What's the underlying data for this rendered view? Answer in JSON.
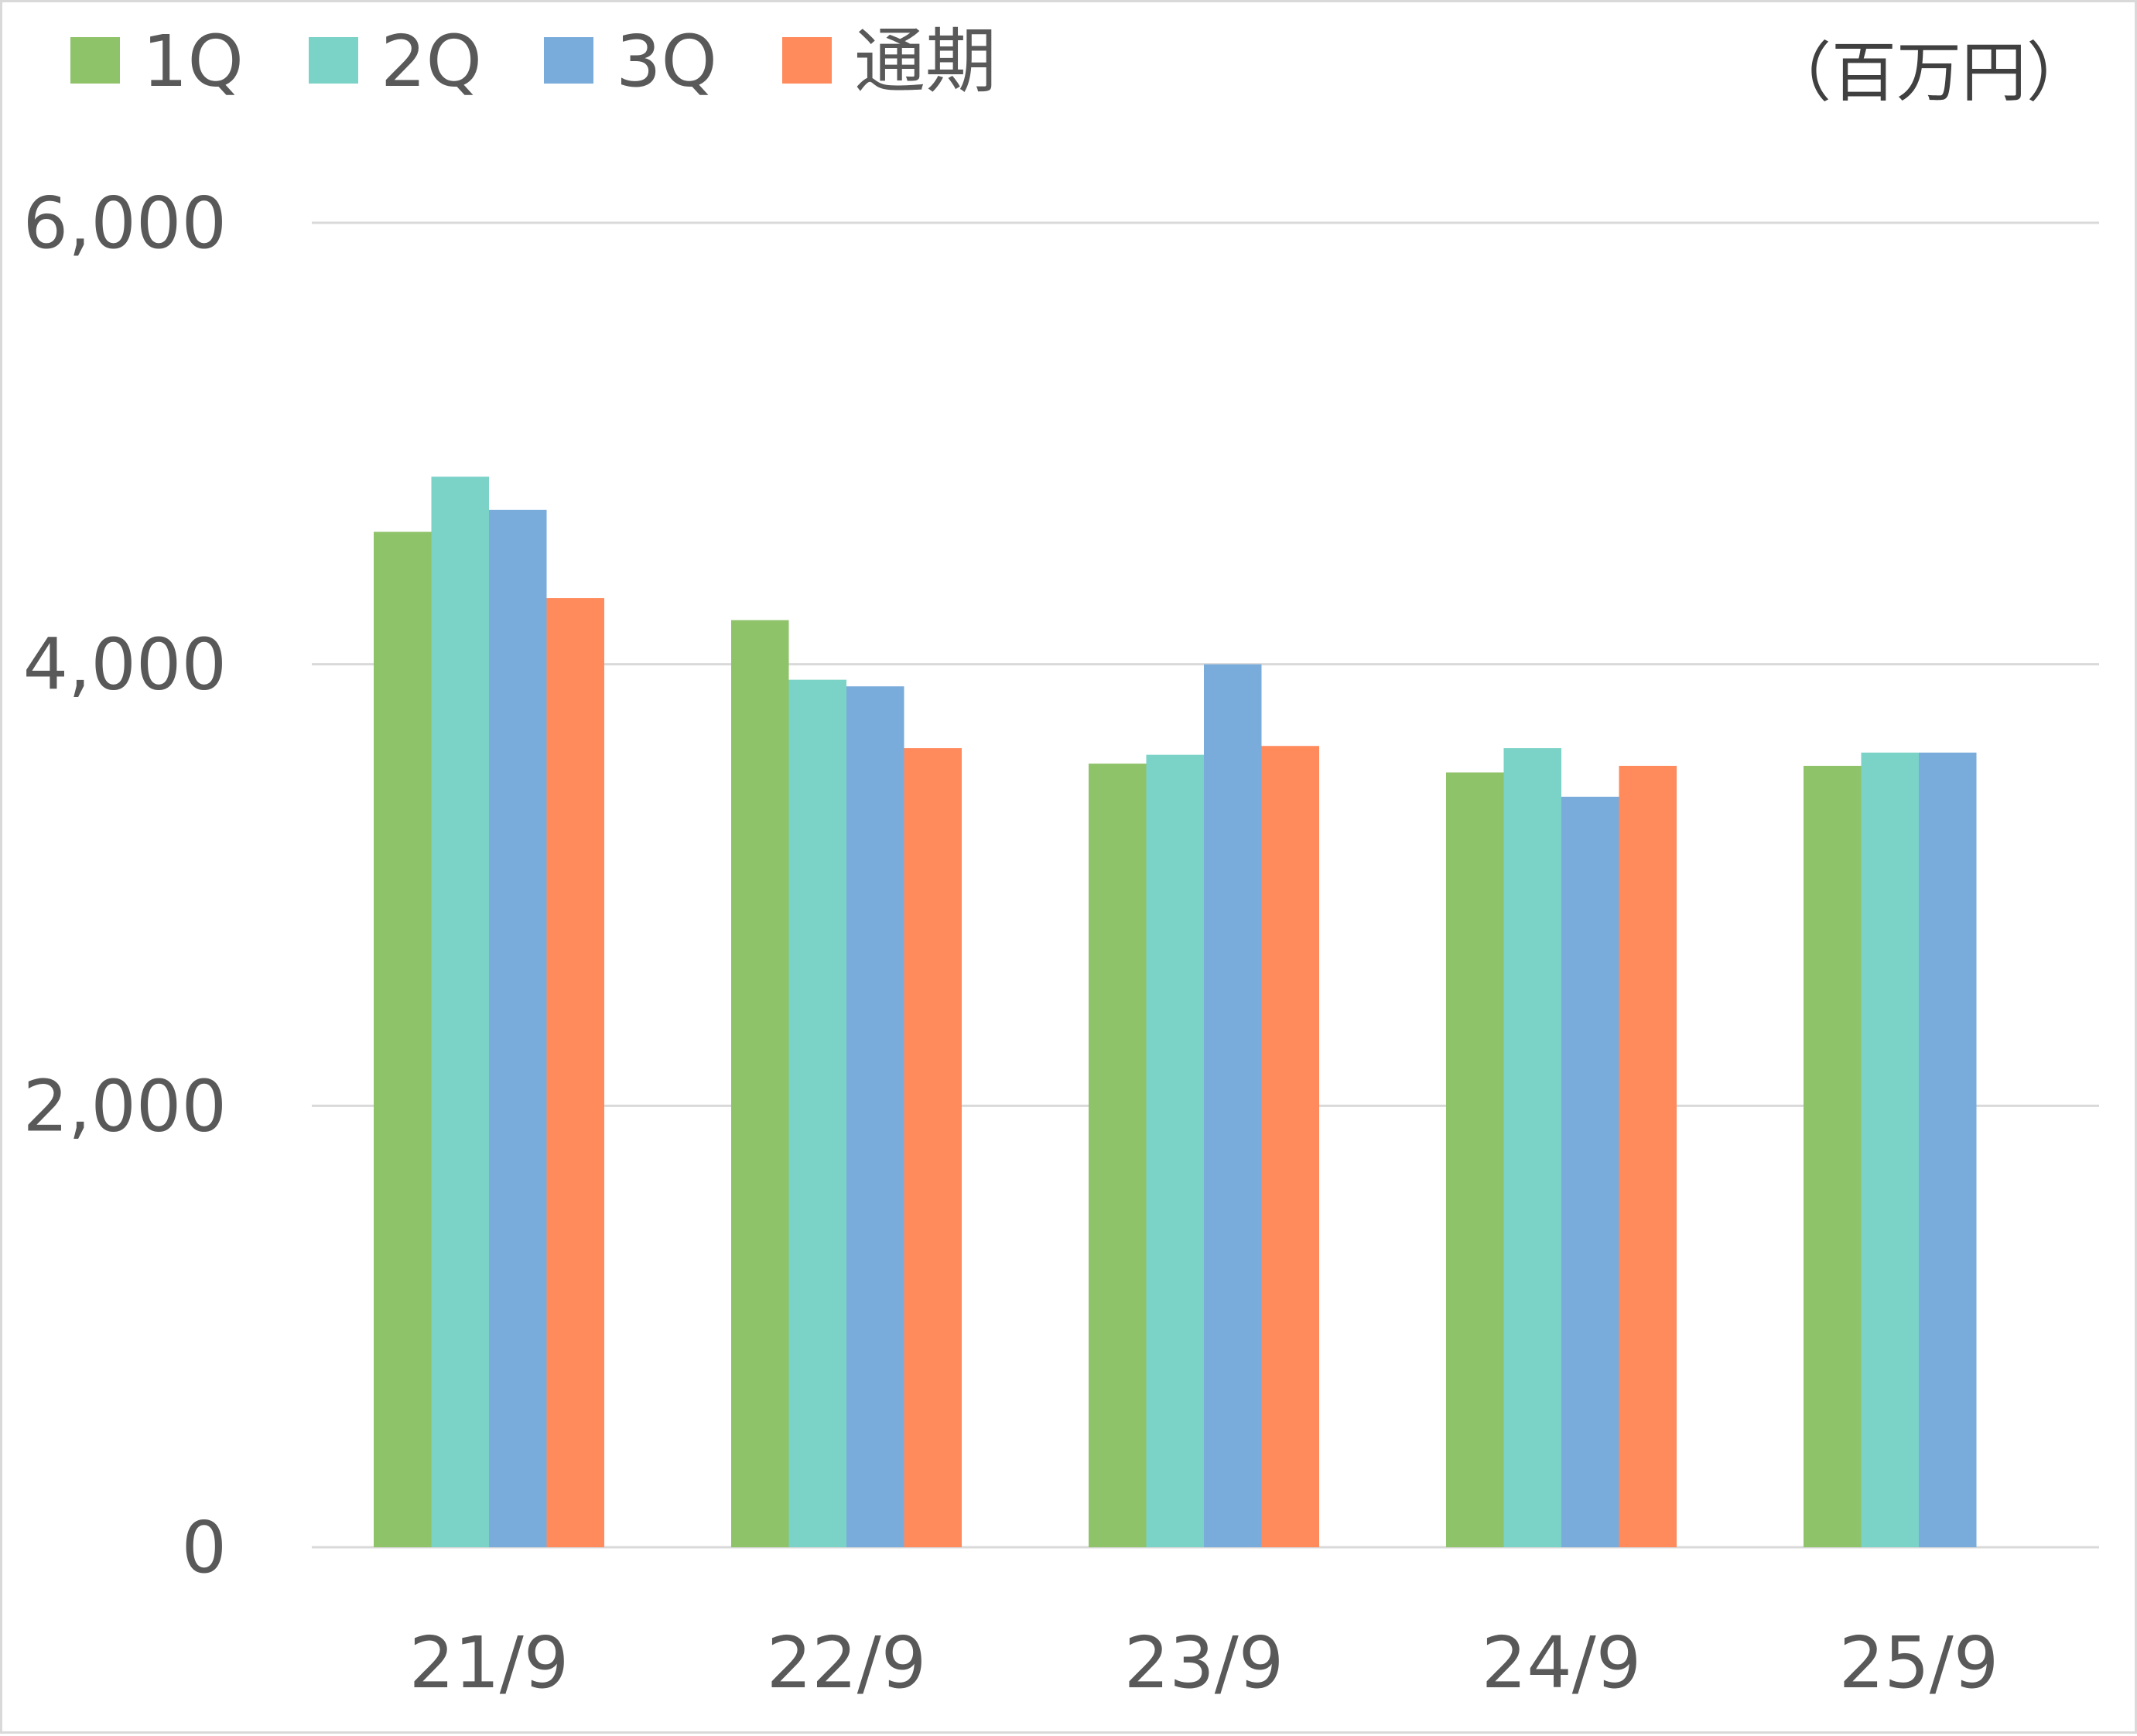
{
  "chart_data": {
    "type": "bar",
    "unit_label": "（百万円）",
    "categories": [
      "21/9",
      "22/9",
      "23/9",
      "24/9",
      "25/9"
    ],
    "series": [
      {
        "name": "1Q",
        "color": "#8fc36a",
        "values": [
          4600,
          4200,
          3550,
          3510,
          3540
        ]
      },
      {
        "name": "2Q",
        "color": "#7bd2c7",
        "values": [
          4850,
          3930,
          3590,
          3620,
          3600
        ]
      },
      {
        "name": "3Q",
        "color": "#79acdb",
        "values": [
          4700,
          3900,
          4000,
          3400,
          3600
        ]
      },
      {
        "name": "通期",
        "color": "#ff8a5c",
        "values": [
          4300,
          3620,
          3630,
          3540,
          null
        ]
      }
    ],
    "y_ticks": [
      "0",
      "2,000",
      "4,000",
      "6,000"
    ],
    "y_tick_values": [
      0,
      2000,
      4000,
      6000
    ],
    "ylim": [
      0,
      6000
    ],
    "grid": true,
    "legend_position": "top-left"
  }
}
